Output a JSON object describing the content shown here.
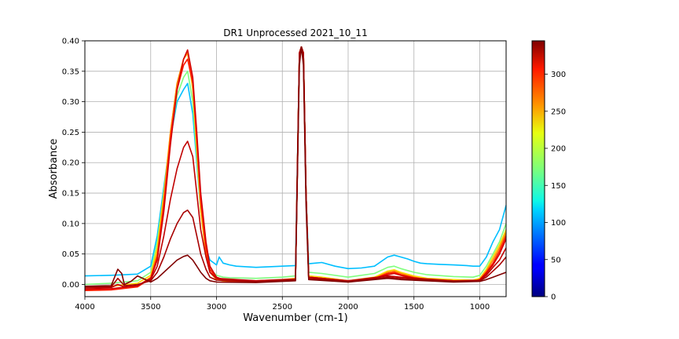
{
  "chart_data": {
    "type": "line",
    "title": "DR1 Unprocessed 2021_10_11",
    "xlabel": "Wavenumber (cm-1)",
    "ylabel": "Absorbance",
    "xlim": [
      4000,
      800
    ],
    "ylim": [
      -0.02,
      0.4
    ],
    "x_reversed": true,
    "grid": true,
    "xticks": [
      4000,
      3500,
      3000,
      2500,
      2000,
      1500,
      1000
    ],
    "xtick_labels": [
      "4000",
      "3500",
      "3000",
      "2500",
      "2000",
      "1500",
      "1000"
    ],
    "yticks": [
      0.0,
      0.05,
      0.1,
      0.15,
      0.2,
      0.25,
      0.3,
      0.35,
      0.4
    ],
    "ytick_labels": [
      "0.00",
      "0.05",
      "0.10",
      "0.15",
      "0.20",
      "0.25",
      "0.30",
      "0.35",
      "0.40"
    ],
    "colorbar": {
      "colormap": "jet",
      "range": [
        0,
        345
      ],
      "ticks": [
        0,
        50,
        100,
        150,
        200,
        250,
        300
      ],
      "tick_labels": [
        "0",
        "50",
        "100",
        "150",
        "200",
        "250",
        "300"
      ]
    },
    "series": [
      {
        "c": 110,
        "color": "#00bfff",
        "x": [
          4000,
          3800,
          3600,
          3500,
          3450,
          3400,
          3350,
          3300,
          3250,
          3220,
          3180,
          3150,
          3120,
          3080,
          3050,
          3000,
          2980,
          2950,
          2900,
          2850,
          2700,
          2500,
          2400,
          2370,
          2355,
          2340,
          2320,
          2300,
          2250,
          2200,
          2100,
          2000,
          1900,
          1800,
          1700,
          1650,
          1600,
          1550,
          1500,
          1450,
          1400,
          1300,
          1200,
          1100,
          1050,
          1000,
          950,
          900,
          850,
          800
        ],
        "y": [
          0.014,
          0.015,
          0.017,
          0.03,
          0.08,
          0.16,
          0.24,
          0.3,
          0.32,
          0.33,
          0.28,
          0.2,
          0.12,
          0.06,
          0.04,
          0.032,
          0.045,
          0.035,
          0.032,
          0.03,
          0.028,
          0.03,
          0.031,
          0.38,
          0.39,
          0.38,
          0.15,
          0.034,
          0.035,
          0.036,
          0.03,
          0.026,
          0.027,
          0.03,
          0.045,
          0.048,
          0.045,
          0.042,
          0.038,
          0.035,
          0.034,
          0.033,
          0.032,
          0.031,
          0.03,
          0.03,
          0.045,
          0.07,
          0.09,
          0.13
        ]
      },
      {
        "c": 160,
        "color": "#7fff7f",
        "x": [
          4000,
          3800,
          3600,
          3500,
          3450,
          3400,
          3350,
          3300,
          3250,
          3220,
          3180,
          3150,
          3120,
          3080,
          3050,
          3000,
          2950,
          2900,
          2700,
          2500,
          2400,
          2370,
          2355,
          2340,
          2320,
          2300,
          2200,
          2000,
          1800,
          1700,
          1650,
          1600,
          1500,
          1400,
          1200,
          1050,
          1000,
          950,
          900,
          850,
          800
        ],
        "y": [
          0.0,
          0.002,
          0.006,
          0.02,
          0.07,
          0.15,
          0.24,
          0.31,
          0.34,
          0.35,
          0.3,
          0.21,
          0.12,
          0.05,
          0.025,
          0.015,
          0.012,
          0.011,
          0.01,
          0.012,
          0.014,
          0.38,
          0.39,
          0.38,
          0.15,
          0.02,
          0.018,
          0.012,
          0.018,
          0.028,
          0.03,
          0.026,
          0.02,
          0.016,
          0.013,
          0.012,
          0.015,
          0.03,
          0.05,
          0.07,
          0.1
        ]
      },
      {
        "c": 230,
        "color": "#ffd700",
        "x": [
          4000,
          3800,
          3600,
          3500,
          3450,
          3400,
          3350,
          3300,
          3250,
          3220,
          3180,
          3150,
          3120,
          3080,
          3050,
          3000,
          2950,
          2900,
          2700,
          2500,
          2400,
          2370,
          2355,
          2340,
          2320,
          2300,
          2200,
          2000,
          1800,
          1700,
          1650,
          1600,
          1500,
          1400,
          1200,
          1050,
          1000,
          950,
          900,
          850,
          800
        ],
        "y": [
          -0.005,
          -0.003,
          0.002,
          0.015,
          0.06,
          0.15,
          0.25,
          0.33,
          0.37,
          0.38,
          0.32,
          0.22,
          0.12,
          0.05,
          0.02,
          0.01,
          0.008,
          0.007,
          0.006,
          0.008,
          0.01,
          0.38,
          0.39,
          0.38,
          0.15,
          0.014,
          0.012,
          0.006,
          0.012,
          0.022,
          0.024,
          0.02,
          0.014,
          0.01,
          0.008,
          0.007,
          0.01,
          0.025,
          0.045,
          0.065,
          0.09
        ]
      },
      {
        "c": 270,
        "color": "#ff8000",
        "x": [
          4000,
          3800,
          3600,
          3500,
          3450,
          3400,
          3350,
          3300,
          3250,
          3220,
          3180,
          3150,
          3120,
          3080,
          3050,
          3000,
          2950,
          2900,
          2700,
          2500,
          2400,
          2370,
          2355,
          2340,
          2320,
          2300,
          2200,
          2000,
          1800,
          1700,
          1650,
          1600,
          1500,
          1400,
          1200,
          1050,
          1000,
          950,
          900,
          850,
          800
        ],
        "y": [
          -0.01,
          -0.008,
          -0.003,
          0.012,
          0.05,
          0.14,
          0.25,
          0.33,
          0.37,
          0.38,
          0.33,
          0.23,
          0.13,
          0.05,
          0.02,
          0.008,
          0.006,
          0.005,
          0.004,
          0.006,
          0.008,
          0.38,
          0.39,
          0.38,
          0.15,
          0.012,
          0.01,
          0.004,
          0.01,
          0.02,
          0.022,
          0.018,
          0.012,
          0.008,
          0.006,
          0.005,
          0.008,
          0.022,
          0.04,
          0.06,
          0.085
        ]
      },
      {
        "c": 310,
        "color": "#ff1a00",
        "x": [
          4000,
          3800,
          3600,
          3500,
          3450,
          3400,
          3350,
          3300,
          3250,
          3220,
          3180,
          3150,
          3120,
          3080,
          3050,
          3000,
          2950,
          2900,
          2700,
          2500,
          2400,
          2370,
          2355,
          2340,
          2320,
          2300,
          2200,
          2000,
          1800,
          1700,
          1650,
          1600,
          1500,
          1400,
          1200,
          1050,
          1000,
          950,
          900,
          850,
          800
        ],
        "y": [
          -0.01,
          -0.009,
          -0.004,
          0.01,
          0.045,
          0.13,
          0.24,
          0.32,
          0.36,
          0.37,
          0.33,
          0.24,
          0.14,
          0.06,
          0.025,
          0.01,
          0.007,
          0.006,
          0.005,
          0.006,
          0.008,
          0.38,
          0.39,
          0.38,
          0.15,
          0.012,
          0.01,
          0.005,
          0.01,
          0.018,
          0.02,
          0.016,
          0.011,
          0.008,
          0.006,
          0.005,
          0.008,
          0.02,
          0.035,
          0.055,
          0.08
        ]
      },
      {
        "c": 330,
        "color": "#d40000",
        "x": [
          4000,
          3800,
          3600,
          3500,
          3450,
          3400,
          3350,
          3300,
          3250,
          3220,
          3180,
          3150,
          3120,
          3080,
          3050,
          3000,
          2950,
          2900,
          2700,
          2500,
          2400,
          2370,
          2355,
          2340,
          2320,
          2300,
          2200,
          2000,
          1800,
          1700,
          1650,
          1600,
          1500,
          1400,
          1200,
          1050,
          1000,
          950,
          900,
          850,
          800
        ],
        "y": [
          -0.008,
          -0.007,
          -0.002,
          0.01,
          0.04,
          0.12,
          0.23,
          0.32,
          0.37,
          0.385,
          0.34,
          0.25,
          0.15,
          0.07,
          0.03,
          0.012,
          0.008,
          0.007,
          0.006,
          0.007,
          0.009,
          0.38,
          0.39,
          0.38,
          0.15,
          0.012,
          0.01,
          0.006,
          0.01,
          0.016,
          0.018,
          0.015,
          0.01,
          0.008,
          0.006,
          0.005,
          0.008,
          0.018,
          0.032,
          0.05,
          0.075
        ]
      },
      {
        "c": 335,
        "color": "#c00000",
        "x": [
          4000,
          3800,
          3750,
          3700,
          3600,
          3500,
          3450,
          3400,
          3350,
          3300,
          3250,
          3220,
          3180,
          3150,
          3120,
          3080,
          3050,
          3000,
          2700,
          2400,
          2370,
          2355,
          2340,
          2320,
          2300,
          2000,
          1700,
          1600,
          1200,
          1000,
          950,
          900,
          850,
          800
        ],
        "y": [
          -0.006,
          -0.005,
          0.0,
          -0.004,
          -0.002,
          0.008,
          0.03,
          0.08,
          0.14,
          0.19,
          0.225,
          0.235,
          0.21,
          0.15,
          0.09,
          0.045,
          0.02,
          0.01,
          0.006,
          0.009,
          0.38,
          0.39,
          0.38,
          0.15,
          0.012,
          0.006,
          0.014,
          0.012,
          0.006,
          0.007,
          0.015,
          0.028,
          0.04,
          0.06
        ]
      },
      {
        "c": 340,
        "color": "#a80000",
        "x": [
          4000,
          3800,
          3750,
          3700,
          3600,
          3500,
          3450,
          3400,
          3350,
          3300,
          3250,
          3220,
          3180,
          3150,
          3120,
          3080,
          3050,
          3000,
          2700,
          2400,
          2370,
          2355,
          2340,
          2320,
          2300,
          2000,
          1700,
          1600,
          1200,
          1000,
          950,
          900,
          850,
          800
        ],
        "y": [
          -0.004,
          -0.004,
          0.01,
          -0.002,
          0.0,
          0.006,
          0.02,
          0.045,
          0.075,
          0.1,
          0.118,
          0.122,
          0.11,
          0.08,
          0.05,
          0.025,
          0.012,
          0.007,
          0.005,
          0.008,
          0.38,
          0.39,
          0.38,
          0.15,
          0.01,
          0.005,
          0.012,
          0.01,
          0.005,
          0.006,
          0.012,
          0.022,
          0.032,
          0.045
        ]
      },
      {
        "c": 345,
        "color": "#800000",
        "x": [
          4000,
          3800,
          3750,
          3720,
          3700,
          3650,
          3600,
          3500,
          3450,
          3400,
          3350,
          3300,
          3250,
          3220,
          3180,
          3150,
          3120,
          3080,
          3050,
          3000,
          2700,
          2400,
          2370,
          2355,
          2340,
          2320,
          2300,
          2000,
          1700,
          1600,
          1200,
          1000,
          950,
          900,
          850,
          800
        ],
        "y": [
          -0.003,
          -0.002,
          0.025,
          0.018,
          0.0,
          0.005,
          0.014,
          0.004,
          0.01,
          0.02,
          0.03,
          0.04,
          0.046,
          0.048,
          0.04,
          0.03,
          0.02,
          0.01,
          0.006,
          0.004,
          0.003,
          0.006,
          0.36,
          0.39,
          0.36,
          0.13,
          0.008,
          0.004,
          0.01,
          0.008,
          0.004,
          0.005,
          0.008,
          0.012,
          0.016,
          0.02
        ]
      }
    ]
  }
}
